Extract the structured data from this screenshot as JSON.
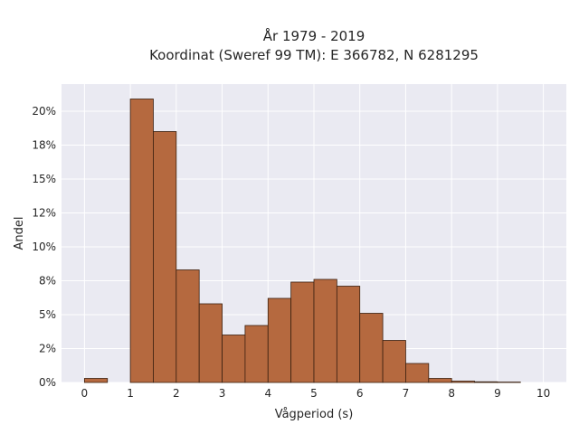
{
  "chart_data": {
    "type": "bar",
    "title": [
      "År 1979 - 2019",
      "Koordinat (Sweref 99 TM): E 366782, N 6281295"
    ],
    "xlabel": "Vågperiod (s)",
    "ylabel": "Andel",
    "xlim": [
      -0.5,
      10.5
    ],
    "ylim": [
      0,
      0.22
    ],
    "xticks": [
      0,
      1,
      2,
      3,
      4,
      5,
      6,
      7,
      8,
      9,
      10
    ],
    "xtick_labels": [
      "0",
      "1",
      "2",
      "3",
      "4",
      "5",
      "6",
      "7",
      "8",
      "9",
      "10"
    ],
    "yticks": [
      0,
      0.025,
      0.05,
      0.075,
      0.1,
      0.125,
      0.15,
      0.175,
      0.2
    ],
    "ytick_labels": [
      "0%",
      "2%",
      "5%",
      "8%",
      "10%",
      "12%",
      "15%",
      "18%",
      "20%"
    ],
    "bin_width": 0.5,
    "bins": [
      {
        "x0": 0.0,
        "value": 0.003
      },
      {
        "x0": 1.0,
        "value": 0.209
      },
      {
        "x0": 1.5,
        "value": 0.185
      },
      {
        "x0": 2.0,
        "value": 0.083
      },
      {
        "x0": 2.5,
        "value": 0.058
      },
      {
        "x0": 3.0,
        "value": 0.035
      },
      {
        "x0": 3.5,
        "value": 0.042
      },
      {
        "x0": 4.0,
        "value": 0.062
      },
      {
        "x0": 4.5,
        "value": 0.074
      },
      {
        "x0": 5.0,
        "value": 0.076
      },
      {
        "x0": 5.5,
        "value": 0.071
      },
      {
        "x0": 6.0,
        "value": 0.051
      },
      {
        "x0": 6.5,
        "value": 0.031
      },
      {
        "x0": 7.0,
        "value": 0.014
      },
      {
        "x0": 7.5,
        "value": 0.003
      },
      {
        "x0": 8.0,
        "value": 0.001
      },
      {
        "x0": 8.5,
        "value": 0.0005
      },
      {
        "x0": 9.0,
        "value": 0.0003
      }
    ],
    "grid": true,
    "colors": {
      "bar_fill": "#b5693f",
      "bar_edge": "#3a2010",
      "plot_background": "#eaeaf2",
      "grid": "#ffffff"
    }
  }
}
